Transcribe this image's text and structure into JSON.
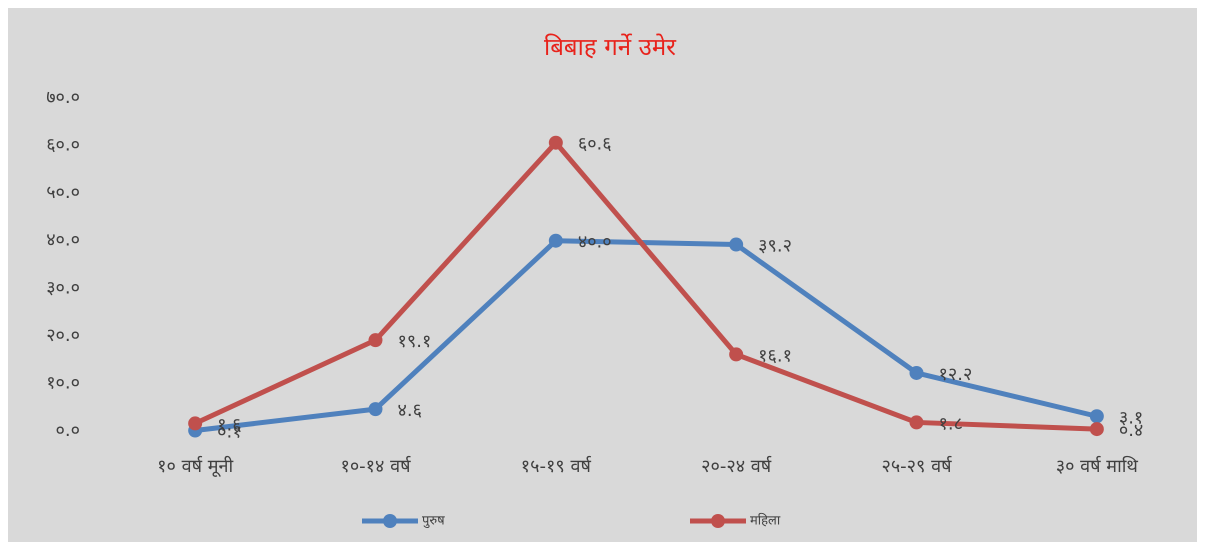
{
  "chart_data": {
    "type": "line",
    "title": "बिबाह गर्ने उमेर",
    "categories": [
      "१० वर्ष मूनी",
      "१०-१४ वर्ष",
      "१५-१९ वर्ष",
      "२०-२४ वर्ष",
      "२५-२९ वर्ष",
      "३० वर्ष माथि"
    ],
    "series": [
      {
        "name": "पुरुष",
        "color": "#4f81bd",
        "values": [
          0.1,
          4.6,
          40.0,
          39.2,
          12.2,
          3.1
        ],
        "value_labels": [
          "०.१",
          "४.६",
          "४०.०",
          "३९.२",
          "१२.२",
          "३.१"
        ]
      },
      {
        "name": "महिला",
        "color": "#c0504d",
        "values": [
          1.6,
          19.1,
          60.6,
          16.1,
          1.8,
          0.4
        ],
        "value_labels": [
          "१.६",
          "१९.१",
          "६०.६",
          "१६.१",
          "१.८",
          "०.४"
        ]
      }
    ],
    "ylim": [
      0,
      70
    ],
    "yticks": [
      {
        "value": 0,
        "label": "०.०"
      },
      {
        "value": 10,
        "label": "१०.०"
      },
      {
        "value": 20,
        "label": "२०.०"
      },
      {
        "value": 30,
        "label": "३०.०"
      },
      {
        "value": 40,
        "label": "४०.०"
      },
      {
        "value": 50,
        "label": "५०.०"
      },
      {
        "value": 60,
        "label": "६०.०"
      },
      {
        "value": 70,
        "label": "७०.०"
      }
    ],
    "grid": false,
    "legend": "bottom"
  }
}
